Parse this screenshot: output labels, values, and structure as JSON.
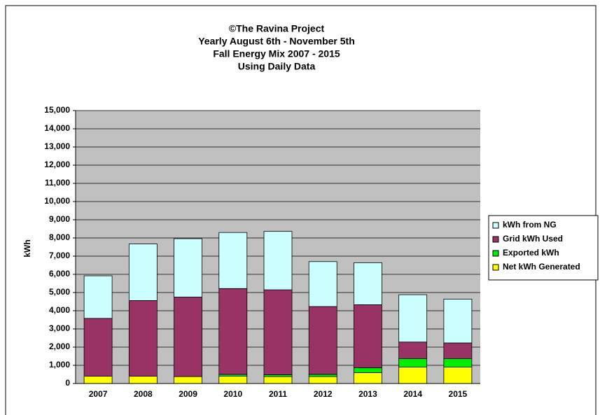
{
  "chart_data": {
    "type": "stacked_bar",
    "title": [
      "©The Ravina Project",
      "Yearly August 6th - November 5th",
      "Fall Energy Mix 2007 - 2015",
      "Using Daily Data"
    ],
    "y_label": "kWh",
    "categories": [
      "2007",
      "2008",
      "2009",
      "2010",
      "2011",
      "2012",
      "2013",
      "2014",
      "2015"
    ],
    "series": [
      {
        "name": "Net kWh Generated",
        "color": "#ffff00",
        "values": [
          400,
          400,
          380,
          400,
          380,
          380,
          600,
          900,
          900
        ]
      },
      {
        "name": "Exported kWh",
        "color": "#00ee00",
        "values": [
          0,
          0,
          0,
          100,
          100,
          120,
          270,
          470,
          470
        ]
      },
      {
        "name": "Grid kWh Used",
        "color": "#993366",
        "values": [
          3180,
          4160,
          4370,
          4720,
          4670,
          3730,
          3460,
          910,
          860
        ]
      },
      {
        "name": "kWh from NG",
        "color": "#ccffff",
        "values": [
          2340,
          3110,
          3210,
          3080,
          3210,
          2470,
          2310,
          2600,
          2410
        ]
      }
    ],
    "ylim": [
      0,
      15000
    ],
    "yticks": [
      0,
      {
        "value": 1000,
        "label": "1,000"
      },
      {
        "value": 2000,
        "label": "2,000"
      },
      {
        "value": 3000,
        "label": "3,000"
      },
      {
        "value": 4000,
        "label": "4,000"
      },
      {
        "value": 5000,
        "label": "5,000"
      },
      {
        "value": 6000,
        "label": "6,000"
      },
      {
        "value": 7000,
        "label": "7,000"
      },
      {
        "value": 8000,
        "label": "8,000"
      },
      {
        "value": 9000,
        "label": "9,000"
      },
      {
        "value": 10000,
        "label": "10,000"
      },
      {
        "value": 11000,
        "label": "11,000"
      },
      {
        "value": 12000,
        "label": "12,000"
      },
      {
        "value": 13000,
        "label": "13,000"
      },
      {
        "value": 14000,
        "label": "14,000"
      },
      {
        "value": 15000,
        "label": "15,000"
      }
    ],
    "grid": true,
    "legend": "right",
    "plot_background": "#c0c0c0"
  }
}
